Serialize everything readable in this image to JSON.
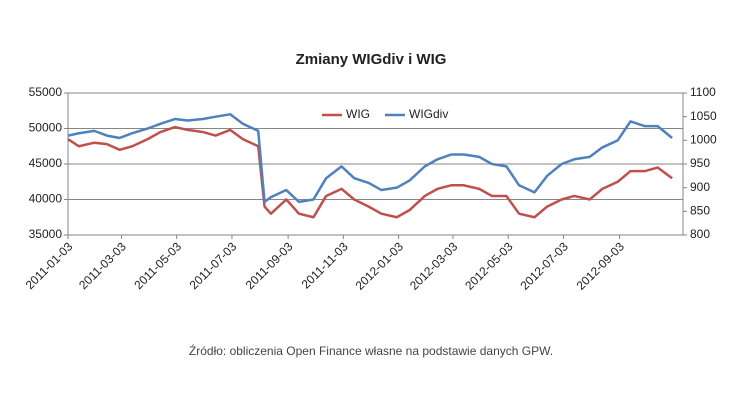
{
  "chart_data": {
    "type": "line",
    "title": "Zmiany WIGdiv i WIG",
    "note": "Źródło: obliczenia Open Finance własne na podstawie danych GPW.",
    "x": [
      "2011-01-03",
      "2011-01-15",
      "2011-02-01",
      "2011-02-15",
      "2011-03-01",
      "2011-03-15",
      "2011-04-01",
      "2011-04-15",
      "2011-05-01",
      "2011-05-15",
      "2011-06-01",
      "2011-06-15",
      "2011-07-01",
      "2011-07-15",
      "2011-08-01",
      "2011-08-08",
      "2011-08-15",
      "2011-09-01",
      "2011-09-15",
      "2011-10-01",
      "2011-10-15",
      "2011-11-01",
      "2011-11-15",
      "2011-12-01",
      "2011-12-15",
      "2012-01-01",
      "2012-01-15",
      "2012-02-01",
      "2012-02-15",
      "2012-03-01",
      "2012-03-15",
      "2012-04-01",
      "2012-04-15",
      "2012-05-01",
      "2012-05-15",
      "2012-06-01",
      "2012-06-15",
      "2012-07-01",
      "2012-07-15",
      "2012-08-01",
      "2012-08-15",
      "2012-09-01",
      "2012-09-15",
      "2012-10-01",
      "2012-10-15",
      "2012-10-31"
    ],
    "series": [
      {
        "name": "WIG",
        "color": "#c0504d",
        "axis": "y",
        "values": [
          48500,
          47500,
          48000,
          47800,
          47000,
          47500,
          48500,
          49500,
          50200,
          49800,
          49500,
          49000,
          49800,
          48500,
          47500,
          39000,
          38000,
          40000,
          38000,
          37500,
          40500,
          41500,
          40000,
          39000,
          38000,
          37500,
          38500,
          40500,
          41500,
          42000,
          42000,
          41500,
          40500,
          40500,
          38000,
          37500,
          39000,
          40000,
          40500,
          40000,
          41500,
          42500,
          44000,
          44000,
          44500,
          43000
        ]
      },
      {
        "name": "WIGdiv",
        "color": "#4f81bd",
        "axis": "y2",
        "values": [
          1010,
          1015,
          1020,
          1010,
          1005,
          1015,
          1025,
          1035,
          1045,
          1042,
          1045,
          1050,
          1055,
          1035,
          1020,
          870,
          880,
          895,
          870,
          875,
          920,
          945,
          920,
          910,
          895,
          900,
          915,
          945,
          960,
          970,
          970,
          965,
          950,
          945,
          905,
          890,
          925,
          950,
          960,
          965,
          985,
          1000,
          1040,
          1030,
          1030,
          1005
        ]
      }
    ],
    "xlim": [
      "2011-01-03",
      "2012-11-12"
    ],
    "xticks": [
      "2011-01-03",
      "2011-03-03",
      "2011-05-03",
      "2011-07-03",
      "2011-09-03",
      "2011-11-03",
      "2012-01-03",
      "2012-03-03",
      "2012-05-03",
      "2012-07-03",
      "2012-09-03"
    ],
    "ylim": [
      35000,
      55000
    ],
    "yticks": [
      35000,
      40000,
      45000,
      50000,
      55000
    ],
    "y2lim": [
      800,
      1100
    ],
    "y2ticks": [
      800,
      850,
      900,
      950,
      1000,
      1050,
      1100
    ],
    "grid": true
  }
}
